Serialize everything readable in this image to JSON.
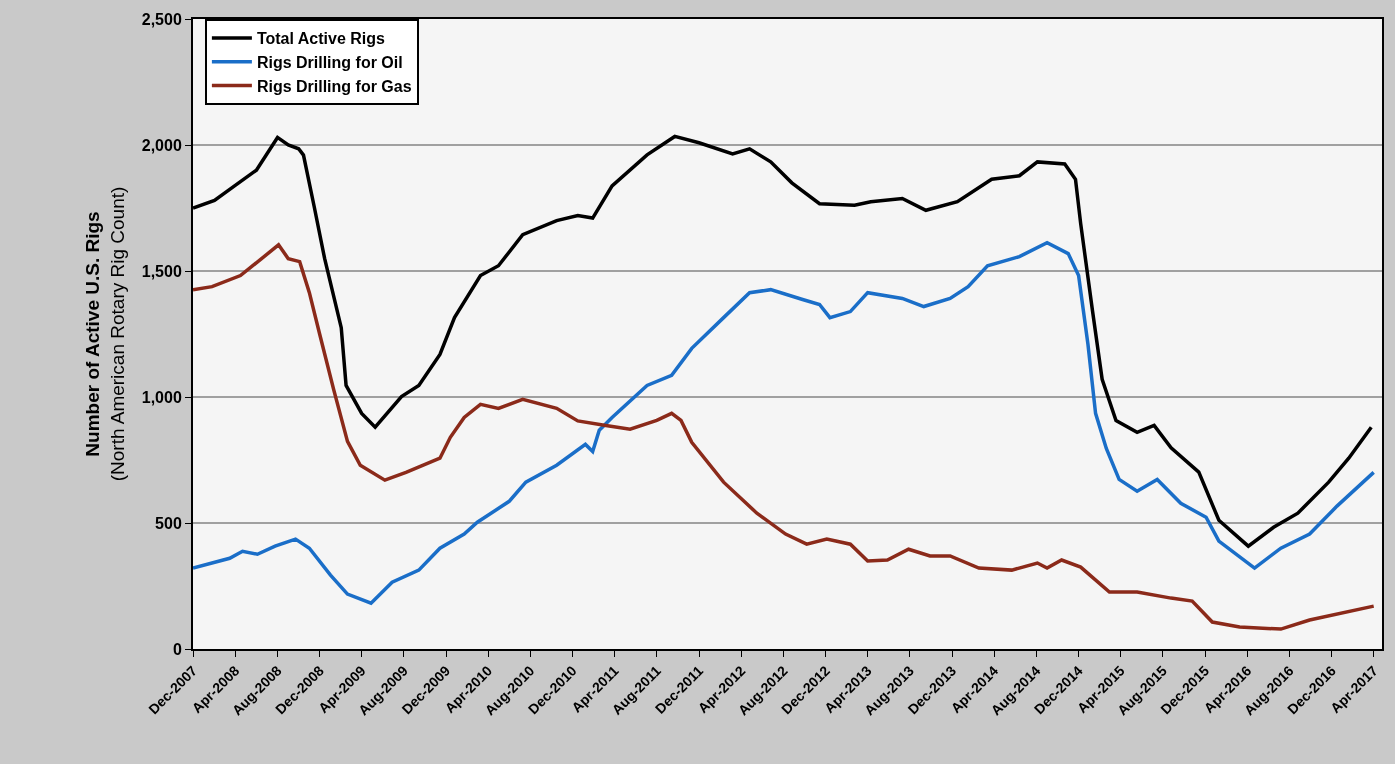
{
  "chart_data": {
    "type": "line",
    "ylabel": "Number of Active U.S. Rigs\n(North American Rotary Rig Count)",
    "xlim": [
      "2007-12-01",
      "2017-04-25"
    ],
    "ylim": [
      0,
      2500
    ],
    "xticks": [
      {
        "value": "2007-12-01",
        "label": "Dec-2007"
      },
      {
        "value": "2008-04-01",
        "label": "Apr-2008"
      },
      {
        "value": "2008-08-01",
        "label": "Aug-2008"
      },
      {
        "value": "2008-12-01",
        "label": "Dec-2008"
      },
      {
        "value": "2009-04-01",
        "label": "Apr-2009"
      },
      {
        "value": "2009-08-01",
        "label": "Aug-2009"
      },
      {
        "value": "2009-12-01",
        "label": "Dec-2009"
      },
      {
        "value": "2010-04-01",
        "label": "Apr-2010"
      },
      {
        "value": "2010-08-01",
        "label": "Aug-2010"
      },
      {
        "value": "2010-12-01",
        "label": "Dec-2010"
      },
      {
        "value": "2011-04-01",
        "label": "Apr-2011"
      },
      {
        "value": "2011-08-01",
        "label": "Aug-2011"
      },
      {
        "value": "2011-12-01",
        "label": "Dec-2011"
      },
      {
        "value": "2012-04-01",
        "label": "Apr-2012"
      },
      {
        "value": "2012-08-01",
        "label": "Aug-2012"
      },
      {
        "value": "2012-12-01",
        "label": "Dec-2012"
      },
      {
        "value": "2013-04-01",
        "label": "Apr-2013"
      },
      {
        "value": "2013-08-01",
        "label": "Aug-2013"
      },
      {
        "value": "2013-12-01",
        "label": "Dec-2013"
      },
      {
        "value": "2014-04-01",
        "label": "Apr-2014"
      },
      {
        "value": "2014-08-01",
        "label": "Aug-2014"
      },
      {
        "value": "2014-12-01",
        "label": "Dec-2014"
      },
      {
        "value": "2015-04-01",
        "label": "Apr-2015"
      },
      {
        "value": "2015-08-01",
        "label": "Aug-2015"
      },
      {
        "value": "2015-12-01",
        "label": "Dec-2015"
      },
      {
        "value": "2016-04-01",
        "label": "Apr-2016"
      },
      {
        "value": "2016-08-01",
        "label": "Aug-2016"
      },
      {
        "value": "2016-12-01",
        "label": "Dec-2016"
      },
      {
        "value": "2017-04-01",
        "label": "Apr-2017"
      }
    ],
    "yticks": [
      0,
      500,
      {
        "value": 1000,
        "label": "1,000"
      },
      {
        "value": 1500,
        "label": "1,500"
      },
      {
        "value": 2000,
        "label": "2,000"
      },
      {
        "value": 2500,
        "label": "2,500"
      }
    ],
    "grid": "y",
    "legend": "top left",
    "line_style": "solid",
    "series": [
      {
        "name": "Total Active Rigs",
        "color": "#000000",
        "x": [
          "2007-12-01",
          "2008-02-01",
          "2008-04-01",
          "2008-06-01",
          "2008-08-01",
          "2008-09-01",
          "2008-10-01",
          "2008-10-15",
          "2008-11-15",
          "2008-12-15",
          "2009-02-01",
          "2009-02-15",
          "2009-04-01",
          "2009-05-10",
          "2009-07-25",
          "2009-09-13",
          "2009-11-13",
          "2009-12-25",
          "2010-03-10",
          "2010-05-01",
          "2010-07-10",
          "2010-10-16",
          "2010-12-16",
          "2011-01-28",
          "2011-03-25",
          "2011-07-04",
          "2011-09-22",
          "2011-12-01",
          "2012-03-07",
          "2012-04-25",
          "2012-06-25",
          "2012-08-25",
          "2012-11-13",
          "2013-02-22",
          "2013-04-10",
          "2013-07-10",
          "2013-09-16",
          "2013-12-16",
          "2014-03-25",
          "2014-06-13",
          "2014-08-04",
          "2014-10-22",
          "2014-11-22",
          "2014-12-07",
          "2015-01-10",
          "2015-02-07",
          "2015-03-19",
          "2015-05-19",
          "2015-07-07",
          "2015-08-25",
          "2015-11-13",
          "2016-01-10",
          "2016-04-04",
          "2016-06-16",
          "2016-08-25",
          "2016-11-22",
          "2017-01-19",
          "2017-03-25"
        ],
        "values": [
          1750,
          1780,
          1840,
          1900,
          2030,
          2000,
          1985,
          1960,
          1755,
          1550,
          1275,
          1046,
          935,
          880,
          1002,
          1046,
          1169,
          1315,
          1482,
          1521,
          1644,
          1700,
          1720,
          1710,
          1838,
          1961,
          2034,
          2009,
          1965,
          1985,
          1933,
          1850,
          1767,
          1761,
          1775,
          1788,
          1741,
          1775,
          1864,
          1878,
          1933,
          1925,
          1864,
          1688,
          1343,
          1070,
          907,
          860,
          887,
          798,
          702,
          511,
          408,
          483,
          539,
          662,
          757,
          880
        ]
      },
      {
        "name": "Rigs Drilling for Oil",
        "color": "#1a6ec8",
        "x": [
          "2007-12-01",
          "2008-03-16",
          "2008-04-22",
          "2008-06-04",
          "2008-07-25",
          "2008-09-22",
          "2008-11-01",
          "2009-01-01",
          "2009-02-19",
          "2009-04-28",
          "2009-06-28",
          "2009-09-13",
          "2009-11-13",
          "2010-01-22",
          "2010-03-01",
          "2010-06-01",
          "2010-07-19",
          "2010-10-16",
          "2011-01-07",
          "2011-01-28",
          "2011-02-16",
          "2011-03-25",
          "2011-07-04",
          "2011-09-13",
          "2011-11-10",
          "2012-02-10",
          "2012-04-25",
          "2012-06-25",
          "2012-09-25",
          "2012-11-13",
          "2012-12-13",
          "2013-02-10",
          "2013-04-01",
          "2013-07-10",
          "2013-09-10",
          "2013-11-25",
          "2014-01-16",
          "2014-03-13",
          "2014-06-13",
          "2014-09-01",
          "2014-11-01",
          "2014-12-01",
          "2014-12-28",
          "2015-01-19",
          "2015-02-19",
          "2015-03-28",
          "2015-05-19",
          "2015-07-16",
          "2015-09-22",
          "2015-12-04",
          "2016-01-10",
          "2016-04-22",
          "2016-07-07",
          "2016-09-28",
          "2016-12-16",
          "2017-04-01"
        ],
        "values": [
          321,
          360,
          388,
          376,
          408,
          436,
          400,
          293,
          218,
          182,
          265,
          313,
          400,
          456,
          503,
          586,
          662,
          729,
          812,
          784,
          868,
          919,
          1046,
          1086,
          1193,
          1315,
          1414,
          1426,
          1387,
          1367,
          1315,
          1339,
          1414,
          1391,
          1359,
          1391,
          1438,
          1521,
          1557,
          1612,
          1569,
          1482,
          1209,
          935,
          796,
          673,
          626,
          673,
          578,
          523,
          428,
          321,
          400,
          456,
          567,
          701
        ]
      },
      {
        "name": "Rigs Drilling for Gas",
        "color": "#8b2a1a",
        "x": [
          "2007-12-01",
          "2008-01-25",
          "2008-04-16",
          "2008-06-16",
          "2008-08-04",
          "2008-09-01",
          "2008-10-04",
          "2008-11-01",
          "2008-12-01",
          "2009-01-10",
          "2009-02-19",
          "2009-03-28",
          "2009-06-07",
          "2009-08-07",
          "2009-11-13",
          "2009-12-13",
          "2010-01-22",
          "2010-03-10",
          "2010-05-01",
          "2010-07-10",
          "2010-10-16",
          "2010-12-16",
          "2011-03-07",
          "2011-05-16",
          "2011-08-01",
          "2011-09-13",
          "2011-10-10",
          "2011-11-10",
          "2012-02-10",
          "2012-05-16",
          "2012-08-07",
          "2012-10-07",
          "2012-12-04",
          "2013-02-10",
          "2013-04-01",
          "2013-05-28",
          "2013-07-28",
          "2013-09-28",
          "2013-11-25",
          "2014-02-16",
          "2014-05-22",
          "2014-08-04",
          "2014-09-01",
          "2014-10-13",
          "2014-12-07",
          "2015-02-28",
          "2015-05-19",
          "2015-08-25",
          "2015-10-25",
          "2015-12-22",
          "2016-03-10",
          "2016-07-07",
          "2016-09-28",
          "2017-04-01"
        ],
        "values": [
          1426,
          1438,
          1482,
          1549,
          1604,
          1549,
          1537,
          1414,
          1248,
          1030,
          824,
          729,
          670,
          701,
          757,
          840,
          919,
          971,
          955,
          991,
          955,
          905,
          887,
          872,
          907,
          935,
          907,
          820,
          662,
          539,
          456,
          416,
          436,
          416,
          349,
          353,
          396,
          369,
          369,
          321,
          313,
          341,
          321,
          353,
          325,
          226,
          226,
          202,
          190,
          107,
          87,
          79,
          115,
          170
        ]
      }
    ]
  }
}
